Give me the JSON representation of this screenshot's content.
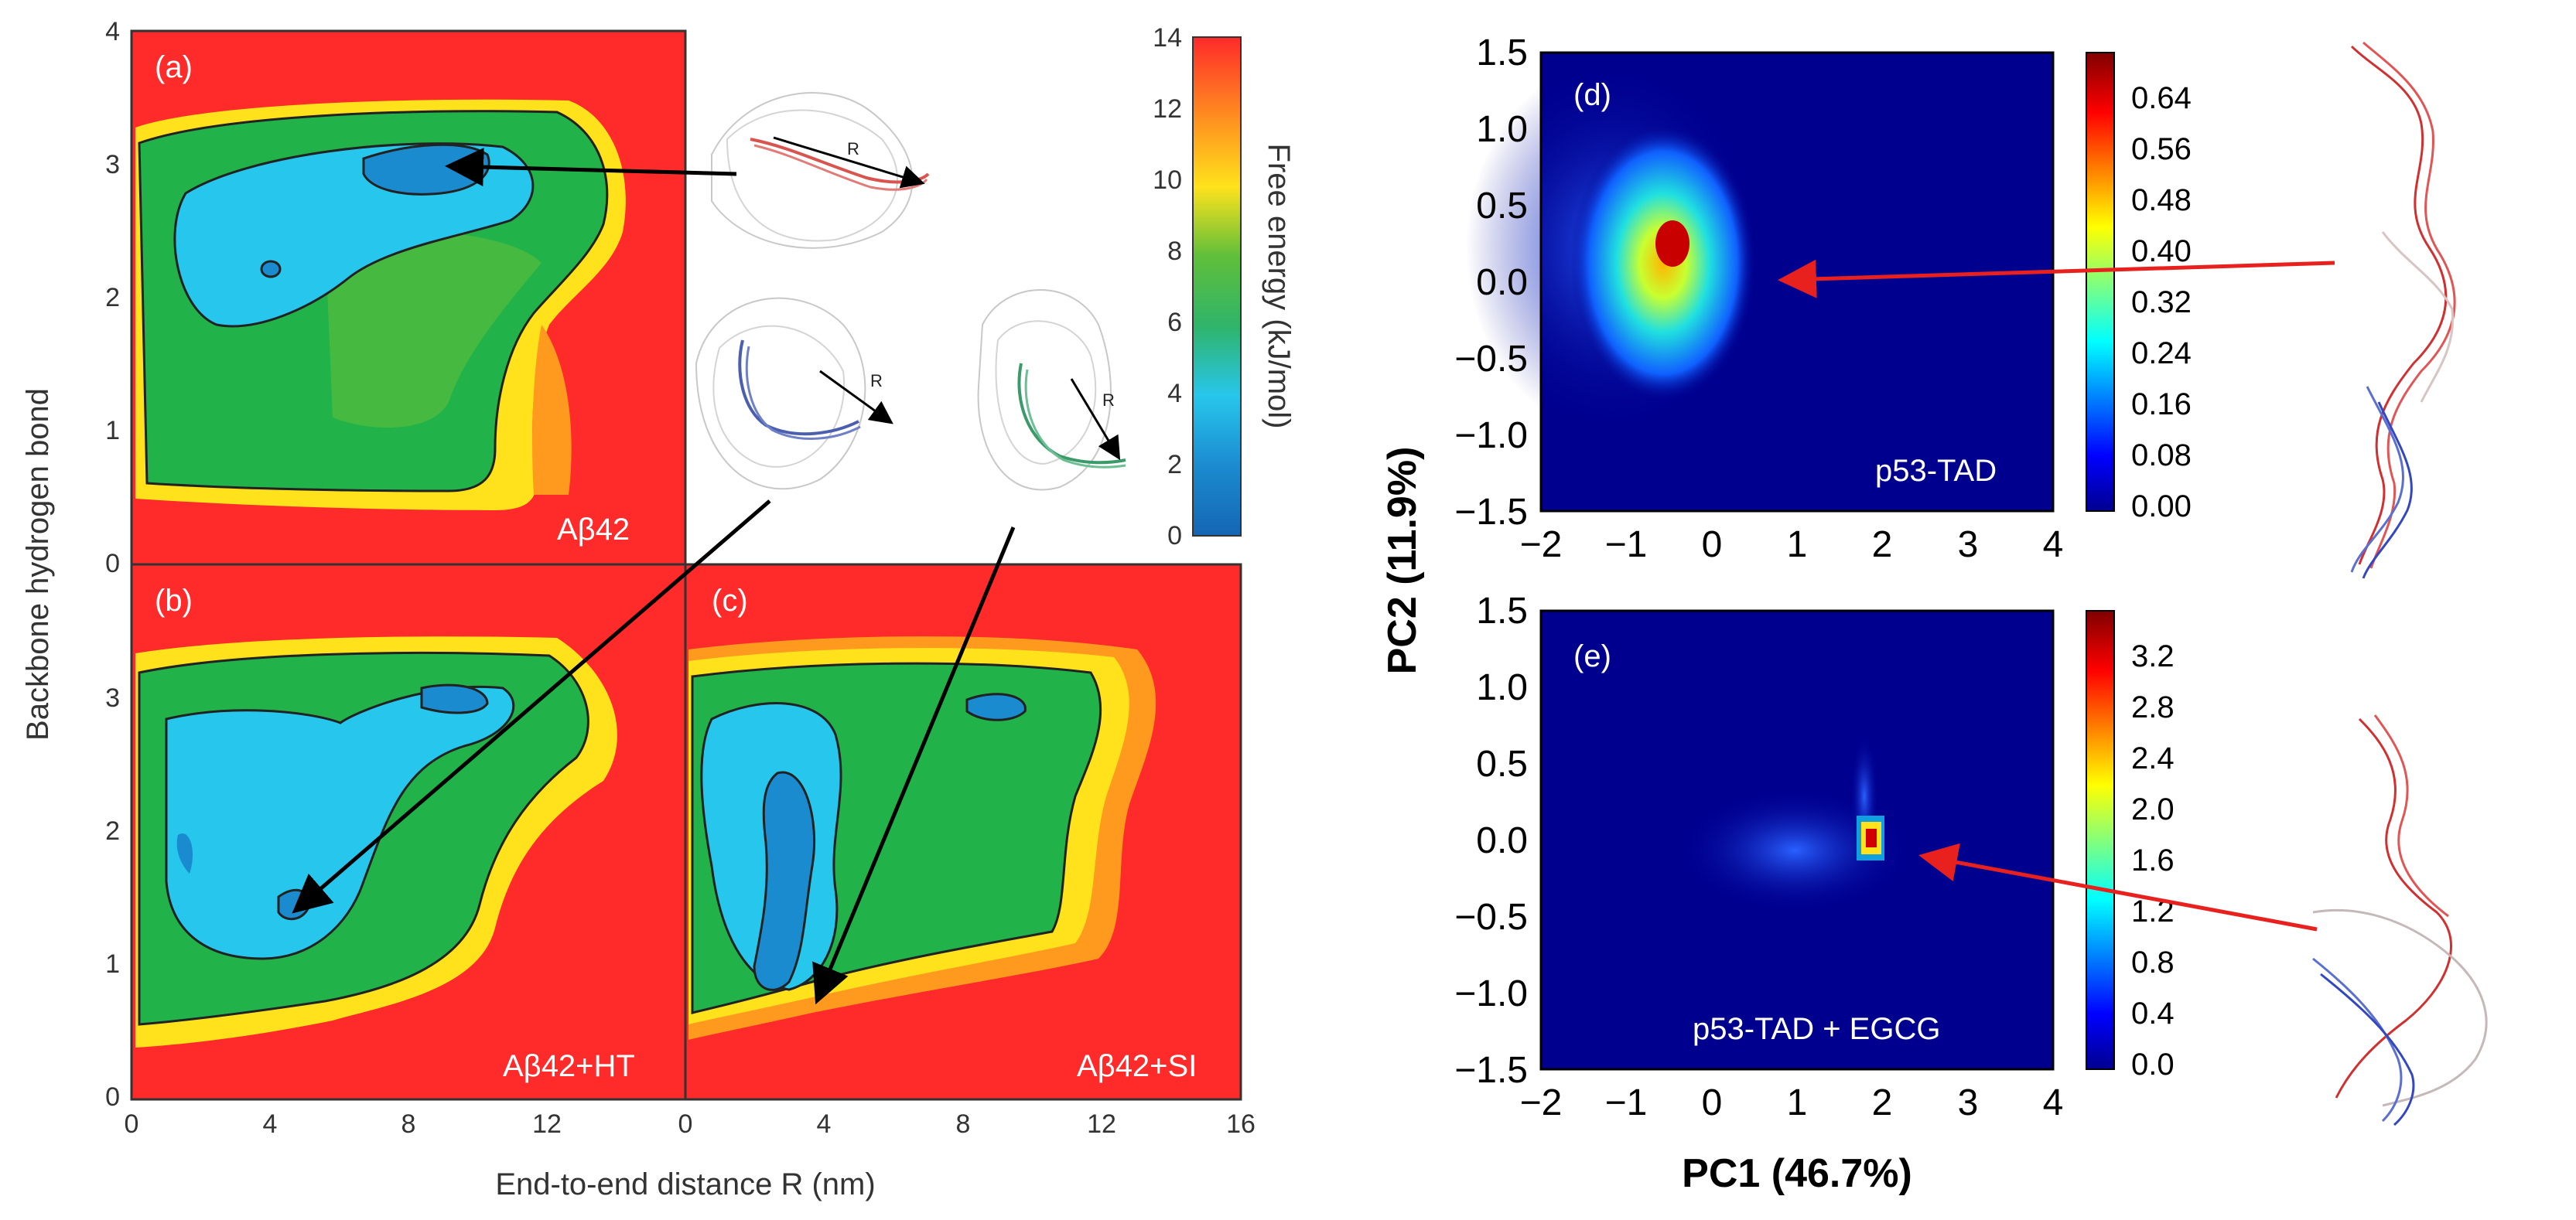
{
  "chart_data": [
    {
      "panel": "(a)",
      "type": "contour",
      "name": "Aβ42",
      "xlabel": "End-to-end distance R (nm)",
      "ylabel": "Backbone hydrogen bond",
      "xticks": [
        "0",
        "4",
        "8",
        "12"
      ],
      "yticks": [
        "0",
        "1",
        "2",
        "3",
        "4"
      ],
      "xlim": [
        0,
        16
      ],
      "ylim": [
        0,
        4
      ],
      "minima": [
        {
          "x": 9,
          "y": 3.0
        },
        {
          "x": 4.5,
          "y": 2.2
        }
      ]
    },
    {
      "panel": "(b)",
      "type": "contour",
      "name": "Aβ42+HT",
      "xticks": [
        "0",
        "4",
        "8",
        "12"
      ],
      "yticks": [
        "0",
        "1",
        "2",
        "3"
      ],
      "xlim": [
        0,
        16
      ],
      "ylim": [
        0,
        4
      ],
      "minima": [
        {
          "x": 5,
          "y": 1.4
        },
        {
          "x": 9.5,
          "y": 3.0
        }
      ]
    },
    {
      "panel": "(c)",
      "type": "contour",
      "name": "Aβ42+SI",
      "xticks": [
        "0",
        "4",
        "8",
        "12",
        "16"
      ],
      "xlim": [
        0,
        16
      ],
      "ylim": [
        0,
        4
      ],
      "minima": [
        {
          "x": 3.2,
          "y": 0.85
        },
        {
          "x": 9,
          "y": 3.0
        }
      ]
    },
    {
      "type": "colorbar",
      "label": "Free energy (kJ/mol)",
      "ticks": [
        "14",
        "12",
        "10",
        "8",
        "6",
        "4",
        "2",
        "0"
      ],
      "range": [
        0,
        14
      ]
    },
    {
      "panel": "(d)",
      "type": "heatmap",
      "name": "p53-TAD",
      "xlabel": "PC1 (46.7%)",
      "ylabel": "PC2 (11.9%)",
      "xticks": [
        "−2",
        "−1",
        "0",
        "1",
        "2",
        "3",
        "4"
      ],
      "yticks": [
        "1.5",
        "1.0",
        "0.5",
        "0.0",
        "−0.5",
        "−1.0",
        "−1.5"
      ],
      "xlim": [
        -2,
        4
      ],
      "ylim": [
        -1.5,
        1.5
      ],
      "peak": {
        "x": -0.6,
        "y": 0.2
      },
      "colorbar_ticks": [
        "0.64",
        "0.56",
        "0.48",
        "0.40",
        "0.32",
        "0.24",
        "0.16",
        "0.08",
        "0.00"
      ],
      "colorbar_range": [
        0,
        0.7
      ]
    },
    {
      "panel": "(e)",
      "type": "heatmap",
      "name": "p53-TAD + EGCG",
      "xticks": [
        "−2",
        "−1",
        "0",
        "1",
        "2",
        "3",
        "4"
      ],
      "yticks": [
        "1.5",
        "1.0",
        "0.5",
        "0.0",
        "−0.5",
        "−1.0",
        "−1.5"
      ],
      "xlim": [
        -2,
        4
      ],
      "ylim": [
        -1.5,
        1.5
      ],
      "peak": {
        "x": 1.8,
        "y": 0.0
      },
      "colorbar_ticks": [
        "3.2",
        "2.8",
        "2.4",
        "2.0",
        "1.6",
        "1.2",
        "0.8",
        "0.4",
        "0.0"
      ],
      "colorbar_range": [
        0,
        3.4
      ]
    }
  ],
  "labels": {
    "a": "(a)",
    "b": "(b)",
    "c": "(c)",
    "d": "(d)",
    "e": "(e)",
    "name_a": "Aβ42",
    "name_b": "Aβ42+HT",
    "name_c": "Aβ42+SI",
    "name_d": "p53-TAD",
    "name_e": "p53-TAD + EGCG",
    "r_marker": "R",
    "xlabel_left": "End-to-end distance R (nm)",
    "ylabel_left": "Backbone hydrogen bond",
    "cb_label": "Free energy (kJ/mol)",
    "xlabel_right": "PC1 (46.7%)",
    "ylabel_right": "PC2 (11.9%)"
  },
  "ticks": {
    "left_y_a": [
      "4",
      "3",
      "2",
      "1",
      "0"
    ],
    "left_y_b": [
      "3",
      "2",
      "1",
      "0"
    ],
    "left_x_b": [
      "0",
      "4",
      "8",
      "12"
    ],
    "left_x_c": [
      "0",
      "4",
      "8",
      "12",
      "16"
    ],
    "cb_free": [
      "14",
      "12",
      "10",
      "8",
      "6",
      "4",
      "2",
      "0"
    ],
    "pc_x": [
      "−2",
      "−1",
      "0",
      "1",
      "2",
      "3",
      "4"
    ],
    "pc_y": [
      "1.5",
      "1.0",
      "0.5",
      "0.0",
      "−0.5",
      "−1.0",
      "−1.5"
    ],
    "cb_d": [
      "0.64",
      "0.56",
      "0.48",
      "0.40",
      "0.32",
      "0.24",
      "0.16",
      "0.08",
      "0.00"
    ],
    "cb_e": [
      "3.2",
      "2.8",
      "2.4",
      "2.0",
      "1.6",
      "1.2",
      "0.8",
      "0.4",
      "0.0"
    ]
  },
  "colors": {
    "high": "#ff2a2a",
    "yellow": "#ffe21c",
    "green": "#21b24a",
    "cyan": "#27c6ec",
    "blue": "#1566b5",
    "heat_bg": "#00008f",
    "arrow_black": "#000000",
    "arrow_red": "#e8201e"
  }
}
